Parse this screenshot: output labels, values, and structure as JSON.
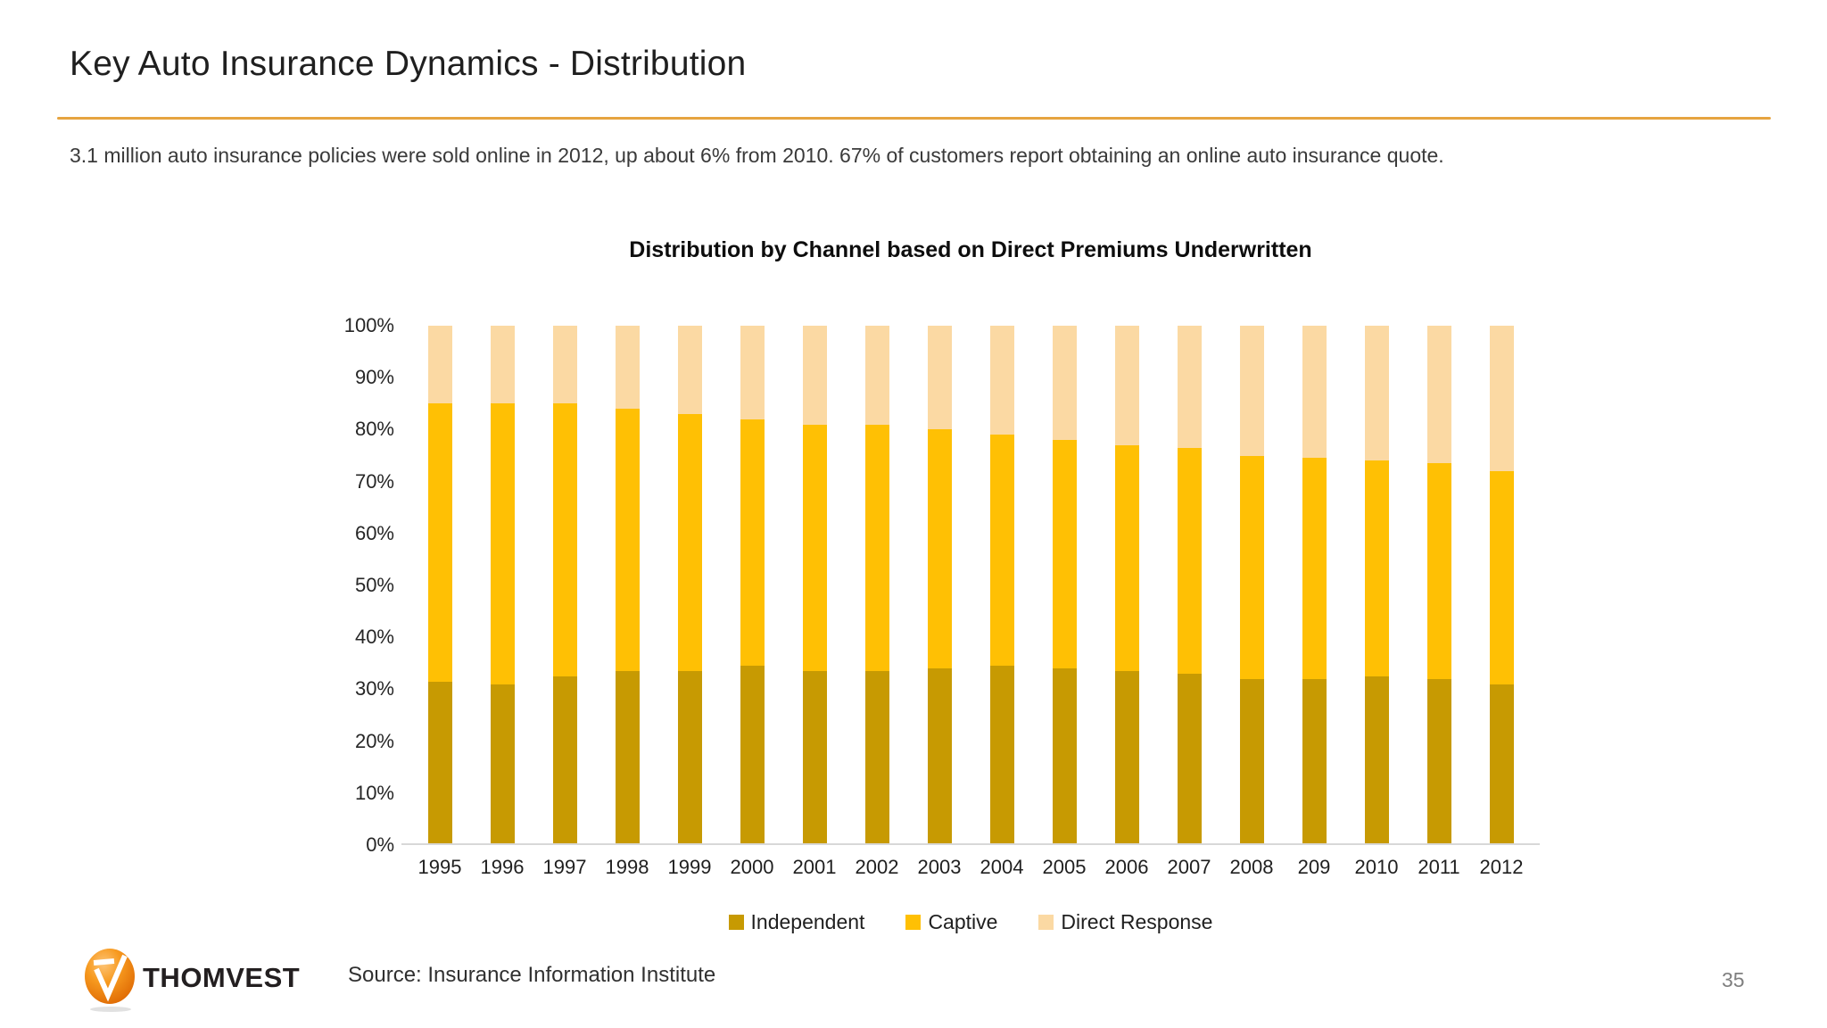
{
  "slide": {
    "title": "Key Auto Insurance Dynamics - Distribution",
    "subtitle": "3.1 million auto insurance policies were sold online in 2012, up about 6% from 2010. 67% of customers report obtaining an online auto insurance quote.",
    "accent_color": "#E6A440",
    "source": "Source: Insurance Information Institute",
    "page_number": "35",
    "logo_text": "THOMVEST"
  },
  "chart_data": {
    "type": "bar",
    "stacked": true,
    "title": "Distribution by Channel based on Direct Premiums Underwritten",
    "categories": [
      "1995",
      "1996",
      "1997",
      "1998",
      "1999",
      "2000",
      "2001",
      "2002",
      "2003",
      "2004",
      "2005",
      "2006",
      "2007",
      "2008",
      "209",
      "2010",
      "2011",
      "2012"
    ],
    "series": [
      {
        "name": "Independent",
        "color": "#C79A02",
        "values": [
          31.5,
          31,
          32.5,
          33.5,
          33.5,
          34.5,
          33.5,
          33.5,
          34,
          34.5,
          34,
          33.5,
          33,
          32,
          32,
          32.5,
          32,
          31
        ]
      },
      {
        "name": "Captive",
        "color": "#FFC004",
        "values": [
          53.5,
          54,
          52.5,
          50.5,
          49.5,
          47.5,
          47.5,
          47.5,
          46,
          44.5,
          44,
          43.5,
          43.5,
          43,
          42.5,
          41.5,
          41.5,
          41
        ]
      },
      {
        "name": "Direct Response",
        "color": "#FBD9A3",
        "values": [
          15,
          15,
          15,
          16,
          17,
          18,
          19,
          19,
          20,
          21,
          22,
          23,
          23.5,
          25,
          25.5,
          26,
          26.5,
          28
        ]
      }
    ],
    "yticks": [
      "100%",
      "90%",
      "80%",
      "70%",
      "60%",
      "50%",
      "40%",
      "30%",
      "20%",
      "10%",
      "0%"
    ],
    "ylim": [
      0,
      100
    ],
    "grid": false,
    "legend_position": "bottom",
    "baseline_color": "#D8D8D8"
  }
}
